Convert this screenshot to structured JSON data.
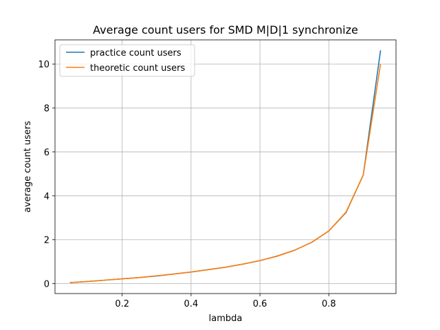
{
  "chart_data": {
    "type": "line",
    "title": "Average count users for SMD M|D|1 synchronize",
    "xlabel": "lambda",
    "ylabel": "average count users",
    "xlim": [
      0.005,
      0.995
    ],
    "ylim": [
      -0.45,
      11.1
    ],
    "xticks": [
      0.2,
      0.4,
      0.6,
      0.8
    ],
    "xtick_labels": [
      "0.2",
      "0.4",
      "0.6",
      "0.8"
    ],
    "yticks": [
      0,
      2,
      4,
      6,
      8,
      10
    ],
    "ytick_labels": [
      "0",
      "2",
      "4",
      "6",
      "8",
      "10"
    ],
    "grid": true,
    "legend_position": "top-left",
    "x": [
      0.05,
      0.1,
      0.15,
      0.2,
      0.25,
      0.3,
      0.35,
      0.4,
      0.45,
      0.5,
      0.55,
      0.6,
      0.65,
      0.7,
      0.75,
      0.8,
      0.85,
      0.9,
      0.95
    ],
    "series": [
      {
        "name": "practice count users",
        "color": "#1f77b4",
        "values": [
          0.05,
          0.1,
          0.16,
          0.22,
          0.28,
          0.35,
          0.44,
          0.53,
          0.64,
          0.75,
          0.89,
          1.05,
          1.26,
          1.52,
          1.88,
          2.4,
          3.24,
          4.95,
          10.6
        ]
      },
      {
        "name": "theoretic count users",
        "color": "#ff7f0e",
        "values": [
          0.05,
          0.1,
          0.16,
          0.22,
          0.28,
          0.36,
          0.44,
          0.53,
          0.64,
          0.75,
          0.89,
          1.05,
          1.25,
          1.52,
          1.88,
          2.4,
          3.26,
          4.95,
          9.98
        ]
      }
    ]
  }
}
